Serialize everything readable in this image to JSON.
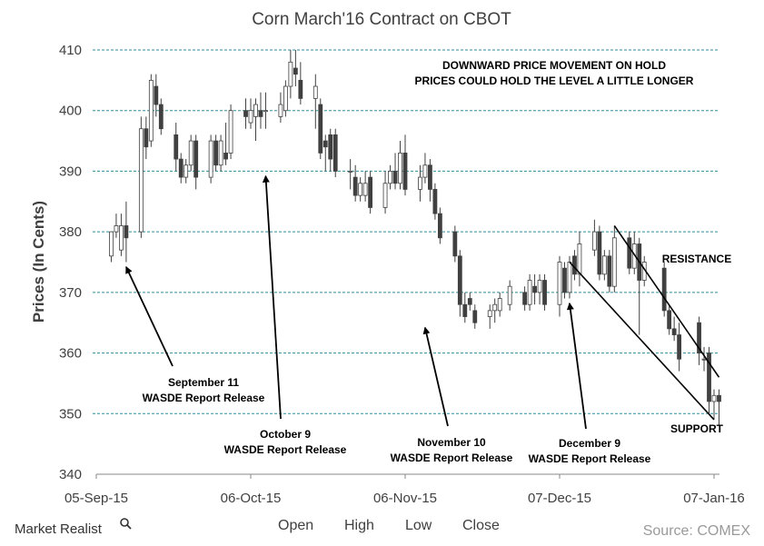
{
  "chart_data": {
    "type": "candlestick",
    "title": "Corn March'16 Contract on CBOT",
    "ylabel": "Prices (In Cents)",
    "xlabel": "",
    "ylim": [
      340,
      410
    ],
    "yticks": [
      340,
      350,
      360,
      370,
      380,
      390,
      400,
      410
    ],
    "xlim": [
      "2015-09-05",
      "2016-01-07"
    ],
    "xticks": [
      {
        "date": "2015-09-05",
        "label": "05-Sep-15"
      },
      {
        "date": "2015-10-06",
        "label": "06-Oct-15"
      },
      {
        "date": "2015-11-06",
        "label": "06-Nov-15"
      },
      {
        "date": "2015-12-07",
        "label": "07-Dec-15"
      },
      {
        "date": "2016-01-07",
        "label": "07-Jan-16"
      }
    ],
    "grid": "horizontal dashed",
    "legend": [
      "Open",
      "High",
      "Low",
      "Close"
    ],
    "source": "Source: COMEX",
    "brand": "Market Realist",
    "colors": {
      "up": "#ffffff",
      "down": "#404040",
      "outline": "#404040",
      "grid": "#2f8f99"
    },
    "candles": [
      {
        "date": "2015-09-08",
        "open": 376,
        "high": 380,
        "low": 375,
        "close": 380
      },
      {
        "date": "2015-09-09",
        "open": 380,
        "high": 383,
        "low": 379,
        "close": 381
      },
      {
        "date": "2015-09-10",
        "open": 377,
        "high": 383,
        "low": 376,
        "close": 381
      },
      {
        "date": "2015-09-11",
        "open": 381,
        "high": 385,
        "low": 375,
        "close": 379
      },
      {
        "date": "2015-09-14",
        "open": 380,
        "high": 399,
        "low": 379,
        "close": 397
      },
      {
        "date": "2015-09-15",
        "open": 397,
        "high": 399,
        "low": 392,
        "close": 394
      },
      {
        "date": "2015-09-16",
        "open": 395,
        "high": 406,
        "low": 394,
        "close": 405
      },
      {
        "date": "2015-09-17",
        "open": 404,
        "high": 406,
        "low": 399,
        "close": 401
      },
      {
        "date": "2015-09-18",
        "open": 401,
        "high": 402,
        "low": 396,
        "close": 397
      },
      {
        "date": "2015-09-21",
        "open": 396,
        "high": 398,
        "low": 390,
        "close": 392
      },
      {
        "date": "2015-09-22",
        "open": 392,
        "high": 393,
        "low": 388,
        "close": 389
      },
      {
        "date": "2015-09-23",
        "open": 389,
        "high": 392,
        "low": 388,
        "close": 391
      },
      {
        "date": "2015-09-24",
        "open": 391,
        "high": 396,
        "low": 390,
        "close": 395
      },
      {
        "date": "2015-09-25",
        "open": 395,
        "high": 396,
        "low": 387,
        "close": 389
      },
      {
        "date": "2015-09-28",
        "open": 389,
        "high": 396,
        "low": 388,
        "close": 395
      },
      {
        "date": "2015-09-29",
        "open": 395,
        "high": 396,
        "low": 390,
        "close": 391
      },
      {
        "date": "2015-09-30",
        "open": 391,
        "high": 396,
        "low": 390,
        "close": 395
      },
      {
        "date": "2015-10-01",
        "open": 393,
        "high": 398,
        "low": 391,
        "close": 392
      },
      {
        "date": "2015-10-02",
        "open": 393,
        "high": 401,
        "low": 392,
        "close": 400
      },
      {
        "date": "2015-10-05",
        "open": 400,
        "high": 402,
        "low": 397,
        "close": 399
      },
      {
        "date": "2015-10-06",
        "open": 398,
        "high": 402,
        "low": 397,
        "close": 400
      },
      {
        "date": "2015-10-07",
        "open": 399,
        "high": 402,
        "low": 395,
        "close": 401
      },
      {
        "date": "2015-10-08",
        "open": 400,
        "high": 403,
        "low": 397,
        "close": 399
      },
      {
        "date": "2015-10-09",
        "open": 400,
        "high": 403,
        "low": 397,
        "close": 400
      },
      {
        "date": "2015-10-12",
        "open": 399,
        "high": 403,
        "low": 398,
        "close": 401
      },
      {
        "date": "2015-10-13",
        "open": 400,
        "high": 405,
        "low": 399,
        "close": 404
      },
      {
        "date": "2015-10-14",
        "open": 404,
        "high": 410,
        "low": 402,
        "close": 408
      },
      {
        "date": "2015-10-15",
        "open": 407,
        "high": 410,
        "low": 404,
        "close": 406
      },
      {
        "date": "2015-10-16",
        "open": 405,
        "high": 408,
        "low": 401,
        "close": 402
      },
      {
        "date": "2015-10-19",
        "open": 402,
        "high": 406,
        "low": 397,
        "close": 404
      },
      {
        "date": "2015-10-20",
        "open": 401,
        "high": 402,
        "low": 392,
        "close": 393
      },
      {
        "date": "2015-10-21",
        "open": 395,
        "high": 396,
        "low": 390,
        "close": 394
      },
      {
        "date": "2015-10-22",
        "open": 396,
        "high": 397,
        "low": 390,
        "close": 392
      },
      {
        "date": "2015-10-23",
        "open": 396,
        "high": 397,
        "low": 389,
        "close": 390
      },
      {
        "date": "2015-10-26",
        "open": 390,
        "high": 392,
        "low": 387,
        "close": 390
      },
      {
        "date": "2015-10-27",
        "open": 389,
        "high": 391,
        "low": 385,
        "close": 386
      },
      {
        "date": "2015-10-28",
        "open": 386,
        "high": 389,
        "low": 385,
        "close": 388
      },
      {
        "date": "2015-10-29",
        "open": 386,
        "high": 390,
        "low": 385,
        "close": 388
      },
      {
        "date": "2015-10-30",
        "open": 389,
        "high": 390,
        "low": 383,
        "close": 384
      },
      {
        "date": "2015-11-02",
        "open": 384,
        "high": 390,
        "low": 383,
        "close": 388
      },
      {
        "date": "2015-11-03",
        "open": 388,
        "high": 391,
        "low": 387,
        "close": 390
      },
      {
        "date": "2015-11-04",
        "open": 390,
        "high": 393,
        "low": 387,
        "close": 388
      },
      {
        "date": "2015-11-05",
        "open": 388,
        "high": 395,
        "low": 387,
        "close": 393
      },
      {
        "date": "2015-11-06",
        "open": 393,
        "high": 396,
        "low": 386,
        "close": 387
      },
      {
        "date": "2015-11-09",
        "open": 387,
        "high": 391,
        "low": 385,
        "close": 389
      },
      {
        "date": "2015-11-10",
        "open": 389,
        "high": 393,
        "low": 388,
        "close": 391
      },
      {
        "date": "2015-11-11",
        "open": 391,
        "high": 392,
        "low": 385,
        "close": 387
      },
      {
        "date": "2015-11-12",
        "open": 387,
        "high": 388,
        "low": 382,
        "close": 383
      },
      {
        "date": "2015-11-13",
        "open": 383,
        "high": 384,
        "low": 378,
        "close": 379
      },
      {
        "date": "2015-11-16",
        "open": 380,
        "high": 381,
        "low": 375,
        "close": 376
      },
      {
        "date": "2015-11-17",
        "open": 376,
        "high": 377,
        "low": 366,
        "close": 368
      },
      {
        "date": "2015-11-18",
        "open": 368,
        "high": 370,
        "low": 365,
        "close": 366
      },
      {
        "date": "2015-11-19",
        "open": 369,
        "high": 370,
        "low": 367,
        "close": 368
      },
      {
        "date": "2015-11-20",
        "open": 367,
        "high": 368,
        "low": 364,
        "close": 365
      },
      {
        "date": "2015-11-23",
        "open": 366,
        "high": 368,
        "low": 364,
        "close": 367
      },
      {
        "date": "2015-11-24",
        "open": 367,
        "high": 369,
        "low": 365,
        "close": 368
      },
      {
        "date": "2015-11-25",
        "open": 367,
        "high": 370,
        "low": 366,
        "close": 369
      },
      {
        "date": "2015-11-27",
        "open": 368,
        "high": 372,
        "low": 367,
        "close": 371
      },
      {
        "date": "2015-11-30",
        "open": 370,
        "high": 371,
        "low": 367,
        "close": 368
      },
      {
        "date": "2015-12-01",
        "open": 368,
        "high": 373,
        "low": 367,
        "close": 372
      },
      {
        "date": "2015-12-02",
        "open": 371,
        "high": 373,
        "low": 368,
        "close": 370
      },
      {
        "date": "2015-12-03",
        "open": 370,
        "high": 373,
        "low": 368,
        "close": 372
      },
      {
        "date": "2015-12-04",
        "open": 372,
        "high": 373,
        "low": 367,
        "close": 368
      },
      {
        "date": "2015-12-07",
        "open": 368,
        "high": 376,
        "low": 366,
        "close": 375
      },
      {
        "date": "2015-12-08",
        "open": 374,
        "high": 375,
        "low": 369,
        "close": 370
      },
      {
        "date": "2015-12-09",
        "open": 370,
        "high": 376,
        "low": 369,
        "close": 375
      },
      {
        "date": "2015-12-10",
        "open": 376,
        "high": 377,
        "low": 372,
        "close": 373
      },
      {
        "date": "2015-12-11",
        "open": 373,
        "high": 380,
        "low": 371,
        "close": 378
      },
      {
        "date": "2015-12-14",
        "open": 377,
        "high": 382,
        "low": 376,
        "close": 380
      },
      {
        "date": "2015-12-15",
        "open": 380,
        "high": 381,
        "low": 372,
        "close": 373
      },
      {
        "date": "2015-12-16",
        "open": 373,
        "high": 377,
        "low": 372,
        "close": 376
      },
      {
        "date": "2015-12-17",
        "open": 376,
        "high": 377,
        "low": 370,
        "close": 371
      },
      {
        "date": "2015-12-18",
        "open": 371,
        "high": 381,
        "low": 370,
        "close": 379
      },
      {
        "date": "2015-12-21",
        "open": 379,
        "high": 380,
        "low": 373,
        "close": 374
      },
      {
        "date": "2015-12-22",
        "open": 374,
        "high": 380,
        "low": 373,
        "close": 378
      },
      {
        "date": "2015-12-23",
        "open": 378,
        "high": 379,
        "low": 363,
        "close": 372
      },
      {
        "date": "2015-12-24",
        "open": 372,
        "high": 376,
        "low": 371,
        "close": 375
      },
      {
        "date": "2015-12-28",
        "open": 374,
        "high": 375,
        "low": 366,
        "close": 367
      },
      {
        "date": "2015-12-29",
        "open": 367,
        "high": 368,
        "low": 363,
        "close": 364
      },
      {
        "date": "2015-12-30",
        "open": 364,
        "high": 366,
        "low": 362,
        "close": 363
      },
      {
        "date": "2015-12-31",
        "open": 363,
        "high": 365,
        "low": 357,
        "close": 359
      },
      {
        "date": "2016-01-04",
        "open": 365,
        "high": 366,
        "low": 358,
        "close": 360
      },
      {
        "date": "2016-01-05",
        "open": 359,
        "high": 361,
        "low": 357,
        "close": 359
      },
      {
        "date": "2016-01-06",
        "open": 360,
        "high": 361,
        "low": 350,
        "close": 352
      },
      {
        "date": "2016-01-07",
        "open": 352,
        "high": 354,
        "low": 349,
        "close": 353
      },
      {
        "date": "2016-01-08",
        "open": 353,
        "high": 354,
        "low": 348,
        "close": 352
      }
    ],
    "annotations": [
      {
        "lines": [
          "DOWNWARD PRICE MOVEMENT ON HOLD",
          "PRICES COULD HOLD THE LEVEL A LITTLE LONGER"
        ]
      },
      {
        "lines": [
          "RESISTANCE"
        ]
      },
      {
        "lines": [
          "SUPPORT"
        ]
      },
      {
        "lines": [
          "September 11",
          "WASDE Report Release"
        ],
        "date": "2015-09-11",
        "price": 376
      },
      {
        "lines": [
          "October 9",
          "WASDE Report Release"
        ],
        "date": "2015-10-09",
        "price": 391
      },
      {
        "lines": [
          "November 10",
          "WASDE Report Release"
        ],
        "date": "2015-11-10",
        "price": 366
      },
      {
        "lines": [
          "December 9",
          "WASDE Report Release"
        ],
        "date": "2015-12-09",
        "price": 370
      }
    ],
    "channel": {
      "upper": [
        [
          "2015-12-18",
          381
        ],
        [
          "2016-01-08",
          356
        ]
      ],
      "lower": [
        [
          "2015-12-09",
          375
        ],
        [
          "2016-01-07",
          349
        ]
      ]
    }
  }
}
